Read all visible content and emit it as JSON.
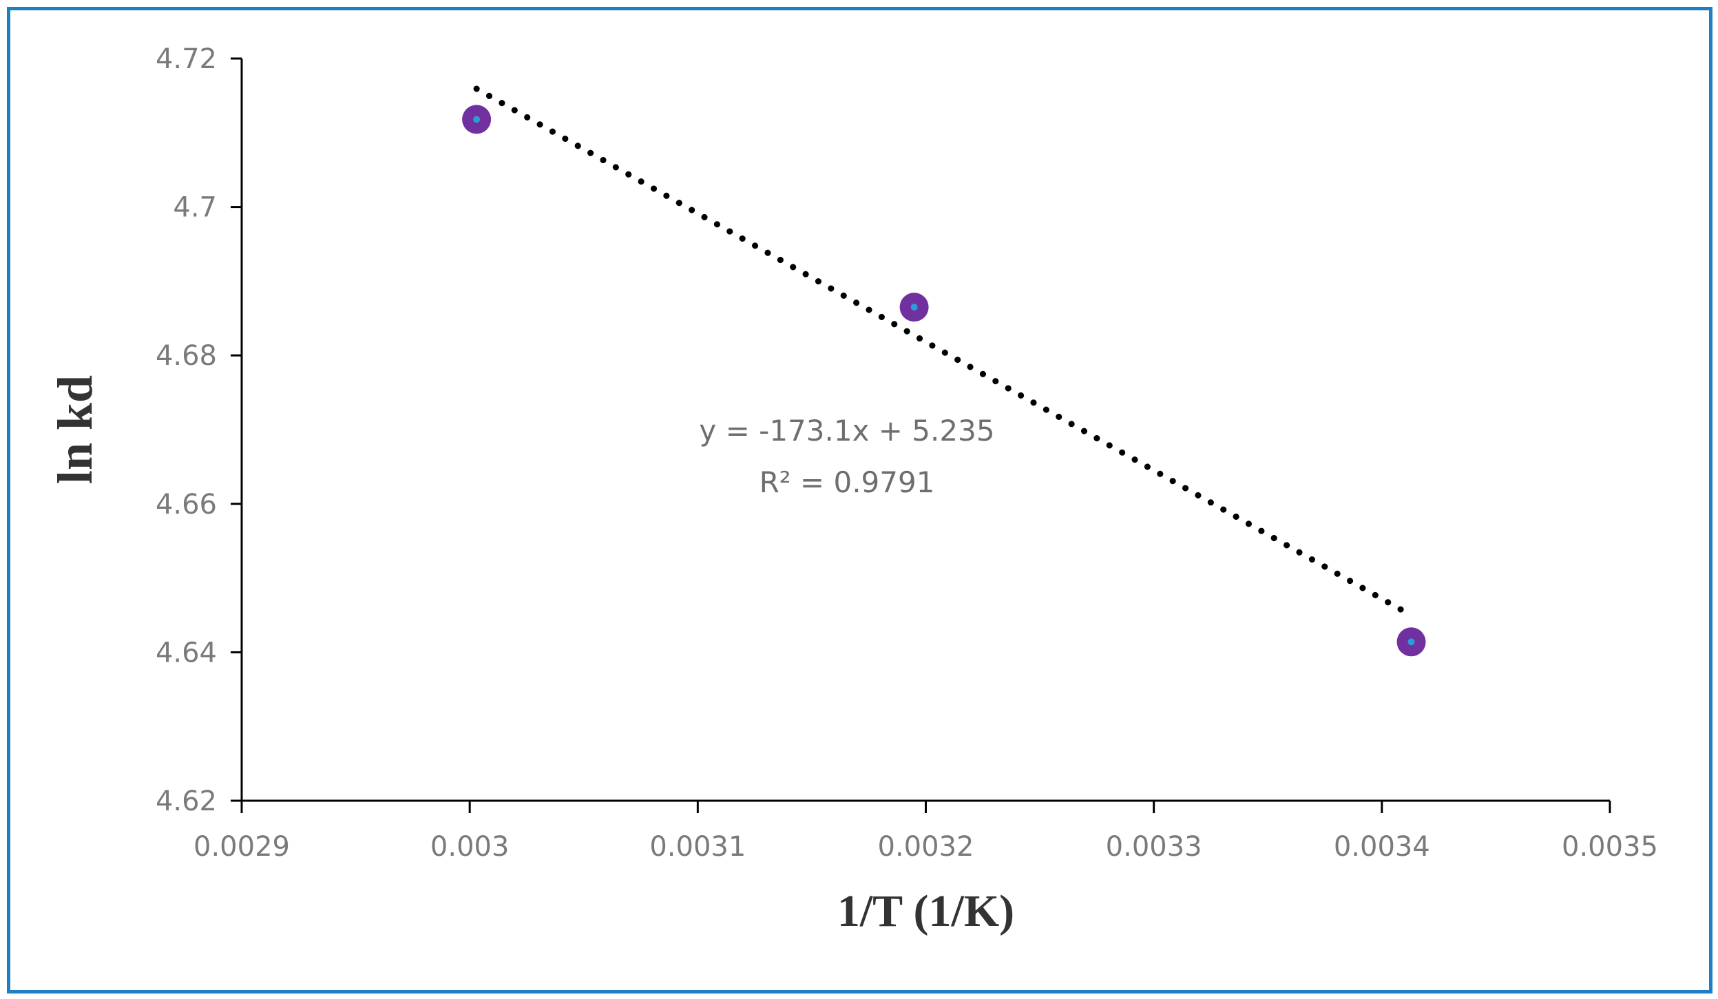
{
  "chart_data": {
    "type": "scatter",
    "xlabel": "1/T (1/K)",
    "ylabel": "ln kd",
    "xlim": [
      0.0029,
      0.0035
    ],
    "ylim": [
      4.62,
      4.72
    ],
    "x_ticks": [
      "0.0029",
      "0.003",
      "0.0031",
      "0.0032",
      "0.0033",
      "0.0034",
      "0.0035"
    ],
    "y_ticks": [
      "4.62",
      "4.64",
      "4.66",
      "4.68",
      "4.7",
      "4.72"
    ],
    "grid": false,
    "series": [
      {
        "points": [
          {
            "x": 0.003003,
            "y": 4.7118
          },
          {
            "x": 0.0031949,
            "y": 4.6865
          },
          {
            "x": 0.0034129,
            "y": 4.6414
          }
        ],
        "color": "#7030a0"
      }
    ],
    "trendline": {
      "type": "linear",
      "slope": -173.1,
      "intercept": 5.235,
      "equation": "y = -173.1x + 5.235",
      "r_squared": "R² = 0.9791",
      "style": "dotted",
      "color": "#000000"
    }
  },
  "colors": {
    "frame_border": "#1f7fc4",
    "marker": "#7030a0",
    "marker_center": "#2e9bd6",
    "axis": "#000000"
  }
}
